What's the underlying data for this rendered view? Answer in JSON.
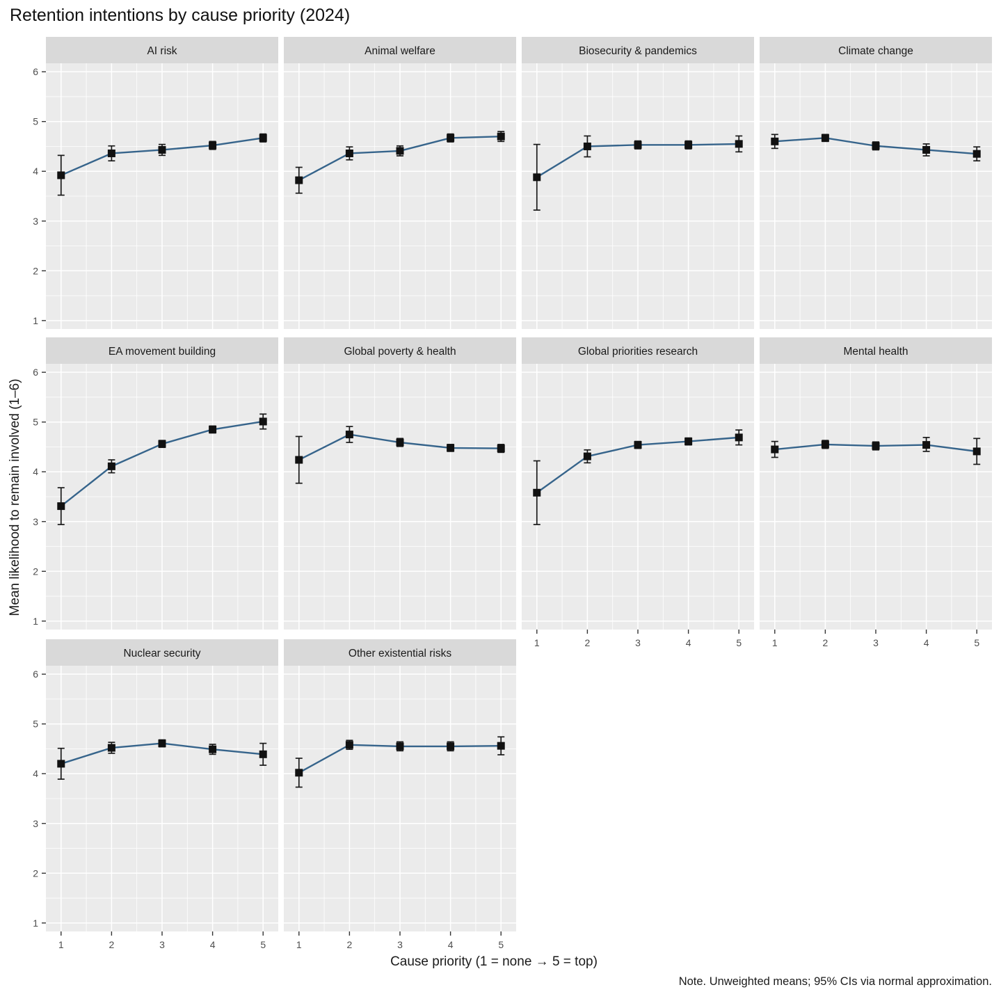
{
  "chart_data": {
    "type": "line",
    "title": "Retention intentions by cause priority (2024)",
    "xlabel": "Cause priority (1 = none → 5 = top)",
    "ylabel": "Mean likelihood to remain involved (1–6)",
    "note": "Note. Unweighted means; 95% CIs via normal approximation.",
    "x": [
      1,
      2,
      3,
      4,
      5
    ],
    "xtick_labels": [
      "1",
      "2",
      "3",
      "4",
      "5"
    ],
    "ytick_labels": [
      "1",
      "2",
      "3",
      "4",
      "5",
      "6"
    ],
    "yticks": [
      1,
      2,
      3,
      4,
      5,
      6
    ],
    "ylim": [
      0.83,
      6.17
    ],
    "xlim": [
      0.7,
      5.3
    ],
    "grid": "white major and minor gridlines on grey panels",
    "legend": "none",
    "error_bars": "95% CI",
    "colors": {
      "line": "#36648B",
      "point": "#111111",
      "error_bar": "#1a1a1a",
      "panel_bg": "#EBEBEB",
      "strip_bg": "#D9D9D9",
      "grid": "#FFFFFF",
      "tick_label": "#4d4d4d",
      "tick_mark": "#333333",
      "text": "#1a1a1a"
    },
    "facets": [
      {
        "label": "AI risk",
        "means": [
          3.92,
          4.36,
          4.43,
          4.52,
          4.67
        ],
        "ci_low": [
          3.52,
          4.21,
          4.32,
          4.44,
          4.59
        ],
        "ci_high": [
          4.32,
          4.51,
          4.54,
          4.6,
          4.75
        ]
      },
      {
        "label": "Animal welfare",
        "means": [
          3.82,
          4.36,
          4.41,
          4.67,
          4.7
        ],
        "ci_low": [
          3.56,
          4.23,
          4.31,
          4.59,
          4.6
        ],
        "ci_high": [
          4.08,
          4.49,
          4.51,
          4.75,
          4.8
        ]
      },
      {
        "label": "Biosecurity & pandemics",
        "means": [
          3.88,
          4.5,
          4.53,
          4.53,
          4.55
        ],
        "ci_low": [
          3.22,
          4.29,
          4.45,
          4.45,
          4.39
        ],
        "ci_high": [
          4.54,
          4.71,
          4.61,
          4.61,
          4.71
        ]
      },
      {
        "label": "Climate change",
        "means": [
          4.6,
          4.67,
          4.51,
          4.43,
          4.35
        ],
        "ci_low": [
          4.46,
          4.6,
          4.43,
          4.31,
          4.21
        ],
        "ci_high": [
          4.74,
          4.74,
          4.59,
          4.55,
          4.49
        ]
      },
      {
        "label": "EA movement building",
        "means": [
          3.31,
          4.11,
          4.56,
          4.85,
          5.01
        ],
        "ci_low": [
          2.94,
          3.98,
          4.49,
          4.78,
          4.86
        ],
        "ci_high": [
          3.68,
          4.24,
          4.63,
          4.92,
          5.16
        ]
      },
      {
        "label": "Global poverty & health",
        "means": [
          4.24,
          4.75,
          4.59,
          4.48,
          4.47
        ],
        "ci_low": [
          3.77,
          4.59,
          4.51,
          4.41,
          4.39
        ],
        "ci_high": [
          4.71,
          4.91,
          4.67,
          4.55,
          4.55
        ]
      },
      {
        "label": "Global priorities research",
        "means": [
          3.58,
          4.31,
          4.54,
          4.61,
          4.69
        ],
        "ci_low": [
          2.94,
          4.18,
          4.47,
          4.54,
          4.54
        ],
        "ci_high": [
          4.22,
          4.44,
          4.61,
          4.68,
          4.84
        ]
      },
      {
        "label": "Mental health",
        "means": [
          4.45,
          4.55,
          4.52,
          4.54,
          4.41
        ],
        "ci_low": [
          4.29,
          4.47,
          4.44,
          4.41,
          4.15
        ],
        "ci_high": [
          4.61,
          4.63,
          4.6,
          4.69,
          4.67
        ]
      },
      {
        "label": "Nuclear security",
        "means": [
          4.2,
          4.52,
          4.61,
          4.49,
          4.39
        ],
        "ci_low": [
          3.89,
          4.41,
          4.54,
          4.39,
          4.17
        ],
        "ci_high": [
          4.51,
          4.63,
          4.68,
          4.59,
          4.61
        ]
      },
      {
        "label": "Other existential risks",
        "means": [
          4.02,
          4.58,
          4.55,
          4.55,
          4.56
        ],
        "ci_low": [
          3.73,
          4.49,
          4.46,
          4.46,
          4.38
        ],
        "ci_high": [
          4.31,
          4.67,
          4.64,
          4.64,
          4.74
        ]
      }
    ]
  }
}
